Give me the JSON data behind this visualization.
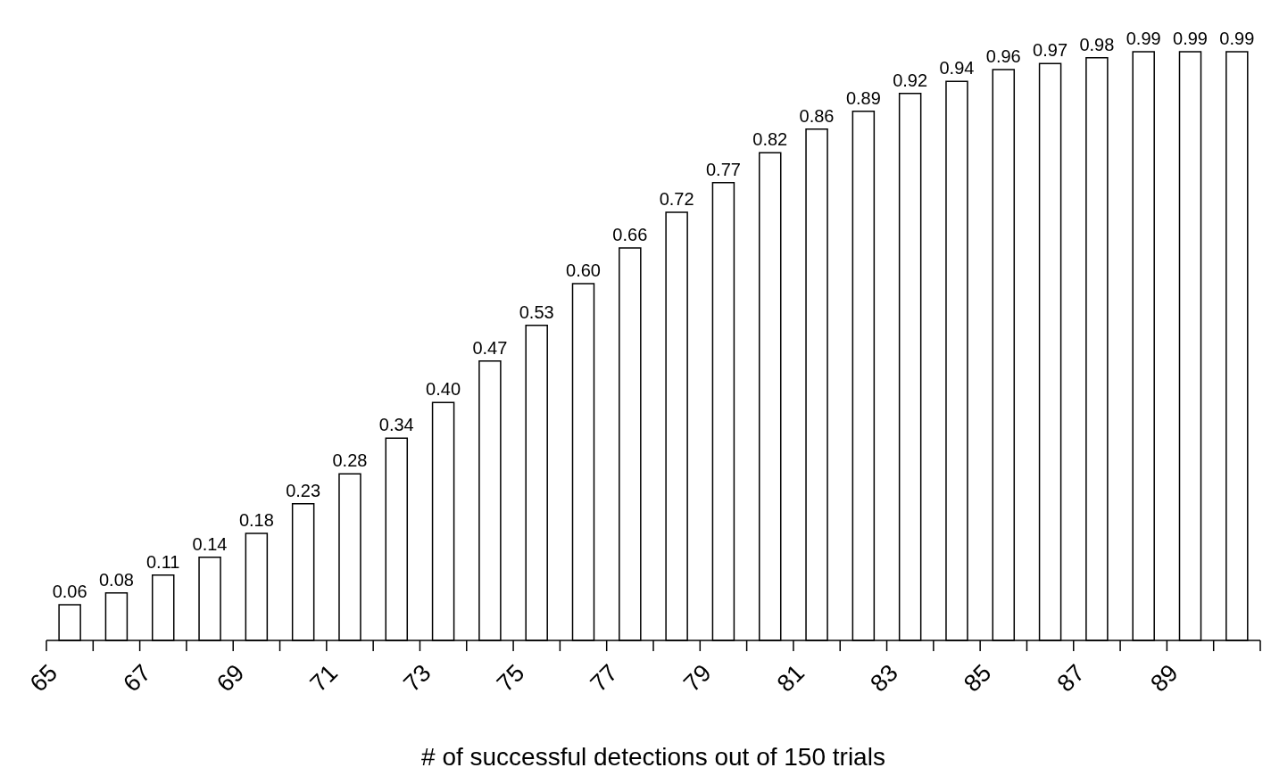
{
  "chart_data": {
    "type": "bar",
    "xlabel": "# of successful detections out of 150 trials",
    "categories": [
      "65",
      null,
      "67",
      null,
      "69",
      null,
      "71",
      null,
      "73",
      null,
      "75",
      null,
      "77",
      null,
      "79",
      null,
      "81",
      null,
      "83",
      null,
      "85",
      null,
      "87",
      null,
      "89",
      null
    ],
    "values": [
      0.06,
      0.08,
      0.11,
      0.14,
      0.18,
      0.23,
      0.28,
      0.34,
      0.4,
      0.47,
      0.53,
      0.6,
      0.66,
      0.72,
      0.77,
      0.82,
      0.86,
      0.89,
      0.92,
      0.94,
      0.96,
      0.97,
      0.98,
      0.99,
      0.99,
      0.99
    ],
    "value_labels": [
      "0.06",
      "0.08",
      "0.11",
      "0.14",
      "0.18",
      "0.23",
      "0.28",
      "0.34",
      "0.40",
      "0.47",
      "0.53",
      "0.60",
      "0.66",
      "0.72",
      "0.77",
      "0.82",
      "0.86",
      "0.89",
      "0.92",
      "0.94",
      "0.96",
      "0.97",
      "0.98",
      "0.99",
      "0.99",
      "0.99"
    ],
    "color": "#ffffff",
    "grid": false,
    "legend": false
  }
}
